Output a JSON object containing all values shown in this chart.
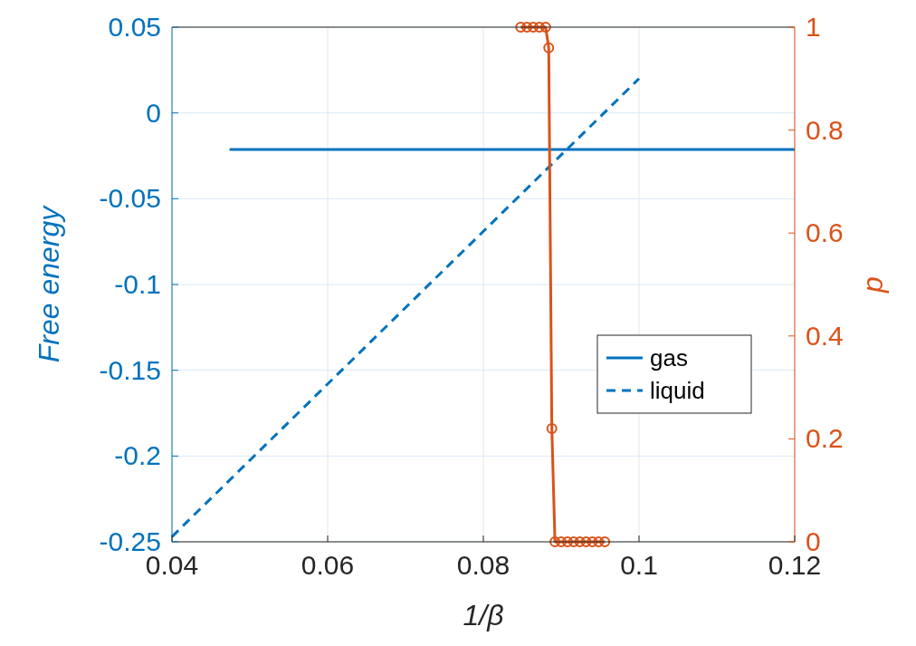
{
  "chart_data": {
    "type": "line",
    "xlabel": "1/β",
    "ylabel": "Free energy",
    "y2label": "p",
    "xlim": [
      0.04,
      0.12
    ],
    "xticks": [
      0.04,
      0.06,
      0.08,
      0.1,
      0.12
    ],
    "ylim": [
      -0.25,
      0.05
    ],
    "yticks": [
      -0.25,
      -0.2,
      -0.15,
      -0.1,
      -0.05,
      0,
      0.05
    ],
    "y2lim": [
      0,
      1
    ],
    "y2ticks": [
      0,
      0.2,
      0.4,
      0.6,
      0.8,
      1
    ],
    "grid": true,
    "legend": "right",
    "series": [
      {
        "name": "gas",
        "color": "#0072bd",
        "x": [
          0.0474,
          0.12
        ],
        "values": [
          -0.0213,
          -0.0213
        ],
        "line_style": "solid",
        "marker": "none"
      },
      {
        "name": "liquid",
        "color": "#0072bd",
        "x": [
          0.04,
          0.1
        ],
        "values": [
          -0.247,
          0.02
        ],
        "line_style": "dashed",
        "marker": "none"
      },
      {
        "color": "#d95319",
        "axis": "y2",
        "line_style": "solid",
        "marker": "circle",
        "x": [
          0.0848,
          0.0856,
          0.0864,
          0.0872,
          0.088,
          0.0884,
          0.0888,
          0.0892,
          0.09,
          0.0908,
          0.0916,
          0.0924,
          0.0932,
          0.094,
          0.0948,
          0.0956
        ],
        "values": [
          1,
          1,
          1,
          1,
          1,
          0.96,
          0.22,
          0,
          0,
          0,
          0,
          0,
          0,
          0,
          0,
          0
        ]
      }
    ]
  }
}
